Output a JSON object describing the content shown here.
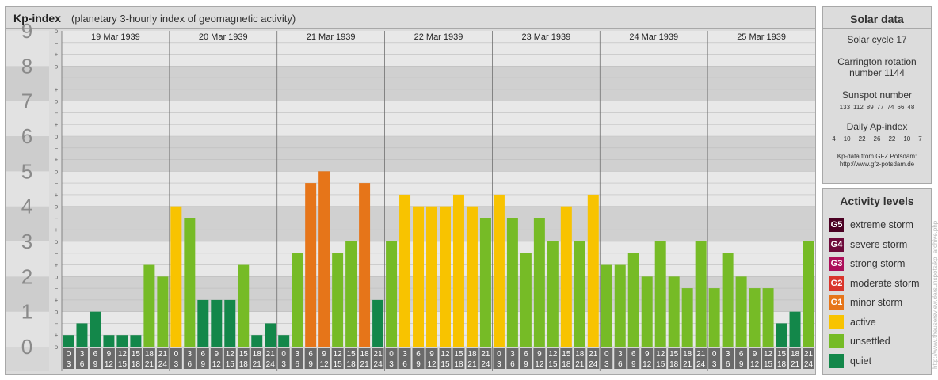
{
  "header": {
    "title": "Kp-index",
    "subtitle": "(planetary 3-hourly index of geomagnetic activity)"
  },
  "chart_data": {
    "type": "bar",
    "ylim": [
      0,
      9
    ],
    "y_tick_labels": [
      "0",
      "1",
      "2",
      "3",
      "4",
      "5",
      "6",
      "7",
      "8",
      "9"
    ],
    "y_minor_labels": [
      "o",
      "+",
      "−"
    ],
    "days": [
      "19 Mar 1939",
      "20 Mar 1939",
      "21 Mar 1939",
      "22 Mar 1939",
      "23 Mar 1939",
      "24 Mar 1939",
      "25 Mar 1939"
    ],
    "interval_labels": [
      [
        "0",
        "3"
      ],
      [
        "3",
        "6"
      ],
      [
        "6",
        "9"
      ],
      [
        "9",
        "12"
      ],
      [
        "12",
        "15"
      ],
      [
        "15",
        "18"
      ],
      [
        "18",
        "21"
      ],
      [
        "21",
        "24"
      ]
    ],
    "values": [
      [
        0.333,
        0.667,
        1.0,
        0.333,
        0.333,
        0.333,
        2.333,
        2.0
      ],
      [
        4.0,
        3.667,
        1.333,
        1.333,
        1.333,
        2.333,
        0.333,
        0.667
      ],
      [
        0.333,
        2.667,
        4.667,
        5.0,
        2.667,
        3.0,
        4.667,
        1.333
      ],
      [
        3.0,
        4.333,
        4.0,
        4.0,
        4.0,
        4.333,
        4.0,
        3.667
      ],
      [
        4.333,
        3.667,
        2.667,
        3.667,
        3.0,
        4.0,
        3.0,
        4.333
      ],
      [
        2.333,
        2.333,
        2.667,
        2.0,
        3.0,
        2.0,
        1.667,
        3.0
      ],
      [
        1.667,
        2.667,
        2.0,
        1.667,
        1.667,
        0.667,
        1.0,
        3.0
      ]
    ],
    "colors": {
      "quiet": "#13874a",
      "unsettled": "#76bb26",
      "active": "#f8c300",
      "minor_storm": "#e67519",
      "moderate_storm": "#d9342b",
      "strong_storm": "#ac0e5a",
      "severe_storm": "#6d0a3a",
      "extreme_storm": "#4a0022"
    }
  },
  "solar": {
    "title": "Solar data",
    "cycle": "Solar cycle 17",
    "carrington_line1": "Carrington rotation",
    "carrington_line2": "number 1144",
    "sunspot_title": "Sunspot number",
    "sunspots": [
      "133",
      "112",
      "89",
      "77",
      "74",
      "66",
      "48"
    ],
    "ap_title": "Daily Ap-index",
    "ap": [
      "4",
      "10",
      "22",
      "26",
      "22",
      "10",
      "7"
    ],
    "source_line1": "Kp-data from GFZ Potsdam:",
    "source_line2": "http://www.gfz-potsdam.de"
  },
  "activity": {
    "title": "Activity levels",
    "items": [
      {
        "badge": "G5",
        "label": "extreme storm",
        "color": "#4a0022"
      },
      {
        "badge": "G4",
        "label": "severe storm",
        "color": "#6d0a3a"
      },
      {
        "badge": "G3",
        "label": "strong storm",
        "color": "#ac0e5a"
      },
      {
        "badge": "G2",
        "label": "moderate storm",
        "color": "#d9342b"
      },
      {
        "badge": "G1",
        "label": "minor storm",
        "color": "#e67519"
      },
      {
        "badge": "",
        "label": "active",
        "color": "#f8c300"
      },
      {
        "badge": "",
        "label": "unsettled",
        "color": "#76bb26"
      },
      {
        "badge": "",
        "label": "quiet",
        "color": "#13874a"
      }
    ]
  },
  "watermark": "http://www.theusersview.de/sunspots/kp_archive.php"
}
